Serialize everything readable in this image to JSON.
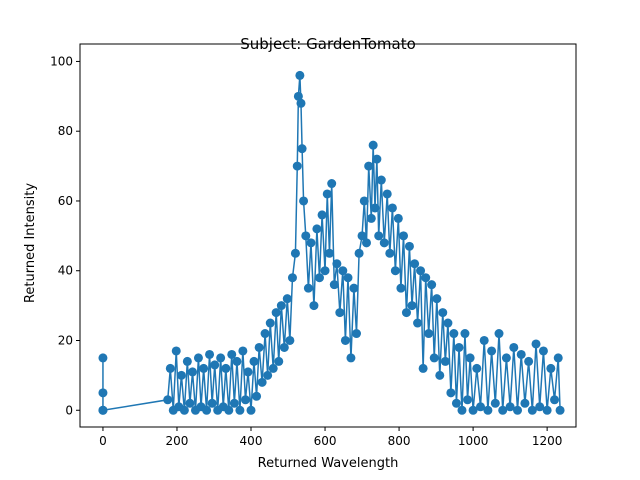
{
  "chart_data": {
    "type": "line",
    "title": "Subject: GardenTomato",
    "x_label": "Returned Wavelength",
    "y_label": "Returned Intensity",
    "xlim": [
      -62,
      1278
    ],
    "ylim": [
      -4.8,
      105
    ],
    "xticks": [
      0,
      200,
      400,
      600,
      800,
      1000,
      1200
    ],
    "yticks": [
      0,
      20,
      40,
      60,
      80,
      100
    ],
    "series": [
      {
        "name": "GardenTomato",
        "color": "#1f77b4",
        "x": [
          0,
          0,
          0,
          0,
          175,
          182,
          190,
          198,
          205,
          212,
          220,
          228,
          235,
          242,
          250,
          258,
          265,
          272,
          280,
          288,
          295,
          302,
          310,
          318,
          325,
          332,
          340,
          348,
          355,
          362,
          370,
          378,
          385,
          392,
          400,
          408,
          415,
          422,
          430,
          438,
          445,
          452,
          460,
          468,
          475,
          482,
          490,
          498,
          505,
          512,
          520,
          525,
          528,
          532,
          535,
          538,
          542,
          548,
          555,
          562,
          570,
          578,
          585,
          592,
          600,
          606,
          612,
          618,
          625,
          632,
          640,
          648,
          655,
          662,
          670,
          678,
          685,
          692,
          700,
          706,
          712,
          718,
          725,
          730,
          735,
          740,
          745,
          752,
          760,
          768,
          775,
          782,
          790,
          798,
          805,
          812,
          820,
          828,
          835,
          842,
          850,
          858,
          865,
          872,
          880,
          888,
          895,
          902,
          910,
          918,
          925,
          932,
          940,
          948,
          955,
          962,
          970,
          978,
          985,
          992,
          1000,
          1010,
          1020,
          1030,
          1040,
          1050,
          1060,
          1070,
          1080,
          1090,
          1100,
          1110,
          1120,
          1130,
          1140,
          1150,
          1160,
          1170,
          1180,
          1190,
          1200,
          1210,
          1220,
          1230,
          1235
        ],
        "values": [
          0,
          15,
          5,
          0,
          3,
          12,
          0,
          17,
          1,
          10,
          0,
          14,
          2,
          11,
          0,
          15,
          1,
          12,
          0,
          16,
          2,
          13,
          0,
          15,
          1,
          12,
          0,
          16,
          2,
          14,
          0,
          17,
          3,
          11,
          0,
          14,
          4,
          18,
          8,
          22,
          10,
          25,
          12,
          28,
          14,
          30,
          18,
          32,
          20,
          38,
          45,
          70,
          90,
          96,
          88,
          75,
          60,
          50,
          35,
          48,
          30,
          52,
          38,
          56,
          40,
          62,
          45,
          65,
          36,
          42,
          28,
          40,
          20,
          38,
          15,
          35,
          22,
          45,
          50,
          60,
          48,
          70,
          55,
          76,
          58,
          72,
          50,
          66,
          48,
          62,
          45,
          58,
          40,
          55,
          35,
          50,
          28,
          47,
          30,
          42,
          25,
          40,
          12,
          38,
          22,
          36,
          15,
          32,
          10,
          28,
          14,
          25,
          5,
          22,
          2,
          18,
          0,
          22,
          3,
          15,
          0,
          12,
          1,
          20,
          0,
          17,
          2,
          22,
          0,
          15,
          1,
          18,
          0,
          16,
          2,
          14,
          0,
          19,
          1,
          17,
          0,
          12,
          3,
          15,
          0
        ]
      }
    ]
  }
}
